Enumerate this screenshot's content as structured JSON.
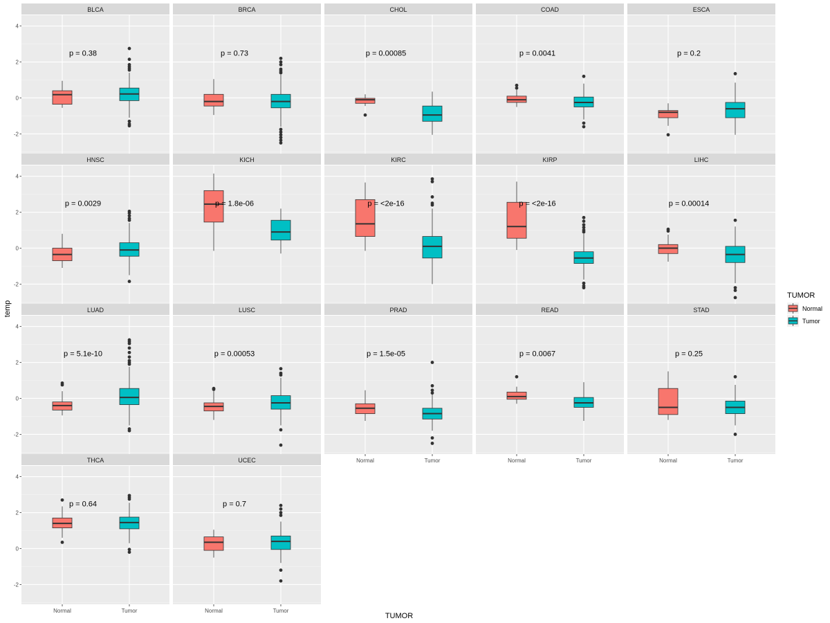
{
  "chart_data": {
    "type": "box",
    "title": "",
    "xlabel": "TUMOR",
    "ylabel": "temp",
    "ylim": [
      -3.1,
      4.6
    ],
    "y_ticks": [
      -2,
      0,
      2,
      4
    ],
    "y_tick_labels": [
      "-2",
      "0",
      "2",
      "4"
    ],
    "categories": [
      "Normal",
      "Tumor"
    ],
    "legend": {
      "title": "TUMOR",
      "position": "right",
      "entries": [
        {
          "label": "Normal",
          "color": "#F8766D"
        },
        {
          "label": "Tumor",
          "color": "#00BFC4"
        }
      ]
    },
    "colors": {
      "Normal": "#F8766D",
      "Tumor": "#00BFC4"
    },
    "panels": [
      {
        "name": "BLCA",
        "p_label": "p = 0.38",
        "Normal": {
          "q1": -0.35,
          "median": 0.18,
          "q3": 0.4,
          "low": -0.55,
          "high": 0.95,
          "outliers": []
        },
        "Tumor": {
          "q1": -0.15,
          "median": 0.22,
          "q3": 0.55,
          "low": -1.1,
          "high": 1.4,
          "outliers": [
            1.55,
            1.65,
            1.75,
            1.85,
            2.15,
            2.75,
            -1.3,
            -1.45,
            -1.55
          ]
        }
      },
      {
        "name": "BRCA",
        "p_label": "p = 0.73",
        "Normal": {
          "q1": -0.45,
          "median": -0.2,
          "q3": 0.2,
          "low": -0.95,
          "high": 1.05,
          "outliers": []
        },
        "Tumor": {
          "q1": -0.55,
          "median": -0.2,
          "q3": 0.2,
          "low": -1.6,
          "high": 1.3,
          "outliers": [
            1.4,
            1.5,
            1.6,
            1.85,
            2.0,
            2.2,
            -1.75,
            -1.9,
            -2.05,
            -2.2,
            -2.35,
            -2.5
          ]
        }
      },
      {
        "name": "CHOL",
        "p_label": "p = 0.00085",
        "Normal": {
          "q1": -0.3,
          "median": -0.1,
          "q3": -0.02,
          "low": -0.45,
          "high": 0.2,
          "outliers": [
            -0.95
          ]
        },
        "Tumor": {
          "q1": -1.3,
          "median": -0.95,
          "q3": -0.45,
          "low": -2.05,
          "high": 0.35,
          "outliers": []
        }
      },
      {
        "name": "COAD",
        "p_label": "p = 0.0041",
        "Normal": {
          "q1": -0.25,
          "median": -0.1,
          "q3": 0.1,
          "low": -0.5,
          "high": 0.45,
          "outliers": [
            0.55,
            0.7
          ]
        },
        "Tumor": {
          "q1": -0.5,
          "median": -0.25,
          "q3": 0.05,
          "low": -1.2,
          "high": 0.8,
          "outliers": [
            1.2,
            -1.4,
            -1.6
          ]
        }
      },
      {
        "name": "ESCA",
        "p_label": "p = 0.2",
        "Normal": {
          "q1": -1.1,
          "median": -0.8,
          "q3": -0.7,
          "low": -1.55,
          "high": -0.3,
          "outliers": [
            -2.05
          ]
        },
        "Tumor": {
          "q1": -1.1,
          "median": -0.6,
          "q3": -0.25,
          "low": -2.05,
          "high": 0.85,
          "outliers": [
            1.35
          ]
        }
      },
      {
        "name": "HNSC",
        "p_label": "p = 0.0029",
        "Normal": {
          "q1": -0.7,
          "median": -0.35,
          "q3": 0.0,
          "low": -1.1,
          "high": 0.8,
          "outliers": []
        },
        "Tumor": {
          "q1": -0.45,
          "median": -0.1,
          "q3": 0.3,
          "low": -1.5,
          "high": 1.4,
          "outliers": [
            1.55,
            1.65,
            1.8,
            1.95,
            2.05,
            -1.85
          ]
        }
      },
      {
        "name": "KICH",
        "p_label": "p = 1.8e-06",
        "Normal": {
          "q1": 1.45,
          "median": 2.45,
          "q3": 3.2,
          "low": -0.15,
          "high": 4.15,
          "outliers": []
        },
        "Tumor": {
          "q1": 0.45,
          "median": 0.9,
          "q3": 1.55,
          "low": -0.3,
          "high": 2.2,
          "outliers": []
        }
      },
      {
        "name": "KIRC",
        "p_label": "p = <2e-16",
        "Normal": {
          "q1": 0.65,
          "median": 1.35,
          "q3": 2.7,
          "low": -0.15,
          "high": 3.65,
          "outliers": []
        },
        "Tumor": {
          "q1": -0.55,
          "median": 0.1,
          "q3": 0.65,
          "low": -2.0,
          "high": 2.2,
          "outliers": [
            2.4,
            2.5,
            2.85,
            3.7,
            3.85
          ]
        }
      },
      {
        "name": "KIRP",
        "p_label": "p = <2e-16",
        "Normal": {
          "q1": 0.55,
          "median": 1.2,
          "q3": 2.55,
          "low": -0.1,
          "high": 3.7,
          "outliers": []
        },
        "Tumor": {
          "q1": -0.85,
          "median": -0.55,
          "q3": -0.2,
          "low": -1.75,
          "high": 0.8,
          "outliers": [
            0.9,
            1.0,
            1.15,
            1.3,
            1.5,
            1.7,
            -1.95,
            -2.1,
            -2.2
          ]
        }
      },
      {
        "name": "LIHC",
        "p_label": "p = 0.00014",
        "Normal": {
          "q1": -0.3,
          "median": 0.0,
          "q3": 0.2,
          "low": -0.75,
          "high": 0.75,
          "outliers": [
            0.95,
            1.05
          ]
        },
        "Tumor": {
          "q1": -0.8,
          "median": -0.35,
          "q3": 0.1,
          "low": -1.95,
          "high": 1.2,
          "outliers": [
            1.55,
            -2.2,
            -2.35,
            -2.75
          ]
        }
      },
      {
        "name": "LUAD",
        "p_label": "p = 5.1e-10",
        "Normal": {
          "q1": -0.65,
          "median": -0.4,
          "q3": -0.2,
          "low": -0.95,
          "high": 0.4,
          "outliers": [
            0.75,
            0.85
          ]
        },
        "Tumor": {
          "q1": -0.35,
          "median": 0.05,
          "q3": 0.55,
          "low": -1.5,
          "high": 1.75,
          "outliers": [
            1.9,
            2.0,
            2.1,
            2.3,
            2.55,
            2.8,
            3.05,
            3.15,
            3.25,
            -1.7,
            -1.8
          ]
        }
      },
      {
        "name": "LUSC",
        "p_label": "p = 0.00053",
        "Normal": {
          "q1": -0.7,
          "median": -0.45,
          "q3": -0.25,
          "low": -1.2,
          "high": 0.4,
          "outliers": [
            0.5,
            0.55
          ]
        },
        "Tumor": {
          "q1": -0.6,
          "median": -0.25,
          "q3": 0.15,
          "low": -1.5,
          "high": 1.15,
          "outliers": [
            1.3,
            1.4,
            1.65,
            -1.75,
            -2.6
          ]
        }
      },
      {
        "name": "PRAD",
        "p_label": "p = 1.5e-05",
        "Normal": {
          "q1": -0.85,
          "median": -0.55,
          "q3": -0.3,
          "low": -1.25,
          "high": 0.45,
          "outliers": []
        },
        "Tumor": {
          "q1": -1.15,
          "median": -0.85,
          "q3": -0.55,
          "low": -1.8,
          "high": 0.25,
          "outliers": [
            0.3,
            0.45,
            0.7,
            2.0,
            -2.2,
            -2.5
          ]
        }
      },
      {
        "name": "READ",
        "p_label": "p = 0.0067",
        "Normal": {
          "q1": -0.05,
          "median": 0.1,
          "q3": 0.35,
          "low": -0.3,
          "high": 0.65,
          "outliers": [
            1.2
          ]
        },
        "Tumor": {
          "q1": -0.5,
          "median": -0.25,
          "q3": 0.05,
          "low": -1.25,
          "high": 0.9,
          "outliers": []
        }
      },
      {
        "name": "STAD",
        "p_label": "p = 0.25",
        "Normal": {
          "q1": -0.9,
          "median": -0.5,
          "q3": 0.55,
          "low": -1.2,
          "high": 1.5,
          "outliers": []
        },
        "Tumor": {
          "q1": -0.85,
          "median": -0.5,
          "q3": -0.15,
          "low": -1.5,
          "high": 0.75,
          "outliers": [
            1.2,
            -2.0
          ]
        }
      },
      {
        "name": "THCA",
        "p_label": "p = 0.64",
        "Normal": {
          "q1": 1.15,
          "median": 1.4,
          "q3": 1.7,
          "low": 0.6,
          "high": 2.35,
          "outliers": [
            2.7,
            0.35
          ]
        },
        "Tumor": {
          "q1": 1.1,
          "median": 1.45,
          "q3": 1.75,
          "low": 0.3,
          "high": 2.55,
          "outliers": [
            2.75,
            2.85,
            2.95,
            -0.05,
            -0.2
          ]
        }
      },
      {
        "name": "UCEC",
        "p_label": "p = 0.7",
        "Normal": {
          "q1": -0.1,
          "median": 0.35,
          "q3": 0.65,
          "low": -0.5,
          "high": 1.05,
          "outliers": []
        },
        "Tumor": {
          "q1": -0.05,
          "median": 0.4,
          "q3": 0.7,
          "low": -0.8,
          "high": 1.5,
          "outliers": [
            1.85,
            2.0,
            2.2,
            2.4,
            -1.2,
            -1.8
          ]
        }
      }
    ]
  }
}
